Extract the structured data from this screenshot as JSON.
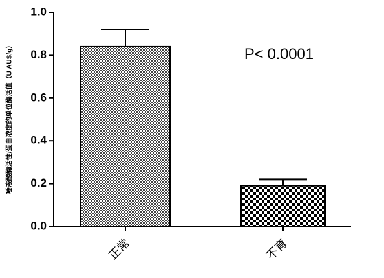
{
  "chart_data": {
    "type": "bar",
    "y_label": "唾液酸酶活性/蛋白浓度的单位酶活值（U AUS/g）",
    "annotation": "P< 0.0001",
    "categories": [
      "正常",
      "不育"
    ],
    "values": [
      0.84,
      0.19
    ],
    "errors": [
      0.08,
      0.03
    ],
    "color": "#000000",
    "ylim": [
      0,
      1
    ],
    "yticks": [
      {
        "value": 0,
        "label": "0.0"
      },
      0.2,
      0.4,
      0.6,
      0.8,
      {
        "value": 1,
        "label": "1.0"
      }
    ]
  }
}
